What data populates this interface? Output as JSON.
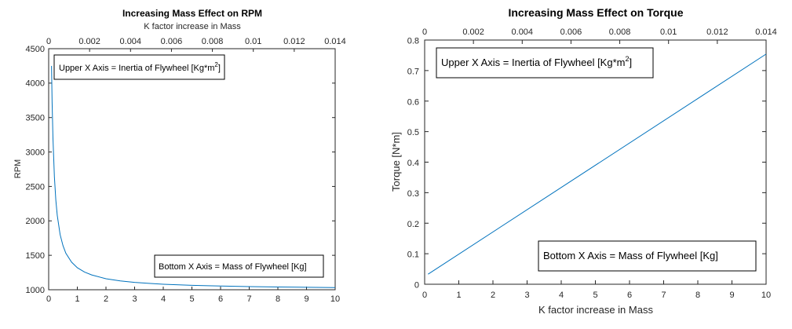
{
  "chart_data": [
    {
      "type": "line",
      "title": "Increasing Mass Effect on RPM",
      "xlabel": "",
      "ylabel": "RPM",
      "x2label": "K factor increase in Mass",
      "xlim": [
        0,
        10
      ],
      "ylim": [
        1000,
        4500
      ],
      "x2lim": [
        0,
        0.014
      ],
      "x_ticks": [
        "0",
        "1",
        "2",
        "3",
        "4",
        "5",
        "6",
        "7",
        "8",
        "9",
        "10"
      ],
      "y_ticks": [
        "1000",
        "1500",
        "2000",
        "2500",
        "3000",
        "3500",
        "4000",
        "4500"
      ],
      "x2_ticks": [
        "0",
        "0.002",
        "0.004",
        "0.006",
        "0.008",
        "0.01",
        "0.012",
        "0.014"
      ],
      "grid": false,
      "line_color": "#0072BD",
      "series": [
        {
          "x": [
            0.1,
            0.12,
            0.15,
            0.2,
            0.25,
            0.3,
            0.4,
            0.5,
            0.6,
            0.8,
            1.0,
            1.25,
            1.5,
            2.0,
            2.5,
            3.0,
            3.5,
            4.0,
            5.0,
            6.0,
            7.0,
            8.0,
            9.0,
            10.0
          ],
          "values": [
            4250,
            3720,
            3200,
            2640,
            2300,
            2080,
            1800,
            1640,
            1530,
            1400,
            1320,
            1257,
            1215,
            1160,
            1128,
            1107,
            1092,
            1080,
            1064,
            1054,
            1046,
            1040,
            1036,
            1032
          ]
        }
      ],
      "annotations": {
        "upper_prefix": "Upper X Axis = Inertia of Flywheel [Kg*m",
        "upper_sup": "2",
        "upper_suffix": "]",
        "bottom": "Bottom X Axis = Mass of Flywheel [Kg]"
      }
    },
    {
      "type": "line",
      "title": "Increasing Mass Effect on Torque",
      "xlabel": "K factor increase in Mass",
      "ylabel": "Torque [N*m]",
      "xlim": [
        0,
        10
      ],
      "ylim": [
        0,
        0.8
      ],
      "x2lim": [
        0,
        0.014
      ],
      "x_ticks": [
        "0",
        "1",
        "2",
        "3",
        "4",
        "5",
        "6",
        "7",
        "8",
        "9",
        "10"
      ],
      "y_ticks": [
        "0",
        "0.1",
        "0.2",
        "0.3",
        "0.4",
        "0.5",
        "0.6",
        "0.7",
        "0.8"
      ],
      "x2_ticks": [
        "0",
        "0.002",
        "0.004",
        "0.006",
        "0.008",
        "0.01",
        "0.012",
        "0.014"
      ],
      "grid": false,
      "line_color": "#0072BD",
      "series": [
        {
          "x": [
            0.1,
            10.0
          ],
          "values": [
            0.033,
            0.754
          ]
        }
      ],
      "annotations": {
        "upper_prefix": "Upper X Axis = Inertia of Flywheel [Kg*m",
        "upper_sup": "2",
        "upper_suffix": "]",
        "bottom": "Bottom X Axis = Mass of Flywheel [Kg]"
      }
    }
  ]
}
